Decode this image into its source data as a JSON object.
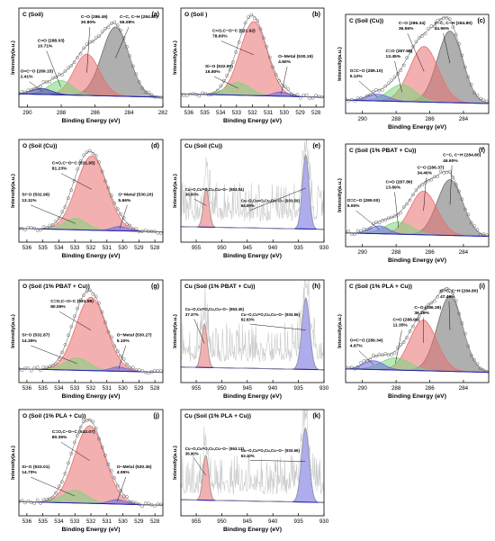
{
  "x_axis_label": "Binding Energy (eV)",
  "y_axis_label": "Intensity(a.u.)",
  "colors": {
    "black_peak": "#6e6e6e",
    "red_peak": "#e87070",
    "green_peak": "#7ed67e",
    "blue_peak": "#6a6ae0",
    "dark_peak": "#3838a8",
    "fit_line": "#9a9a9a",
    "background_line": "#1f1fb0"
  },
  "chart_data": [
    {
      "id": "a",
      "type": "line",
      "element": "C",
      "title": "C (Soil)",
      "panel_label": "(a)",
      "xlim": [
        290.5,
        282
      ],
      "x_ticks": [
        290,
        288,
        286,
        284,
        282
      ],
      "ylim": [
        0,
        1
      ],
      "peaks": [
        {
          "center": 284.8,
          "height": 0.82,
          "width": 0.8,
          "color": "black_peak",
          "label_lines": [
            "C−C, C−H (284.80)",
            "56.08%"
          ]
        },
        {
          "center": 286.49,
          "height": 0.49,
          "width": 0.75,
          "color": "red_peak",
          "label_lines": [
            "C−O (286.49)",
            "30.80%"
          ]
        },
        {
          "center": 288.03,
          "height": 0.17,
          "width": 0.7,
          "color": "green_peak",
          "label_lines": [
            "C=O (288.03)",
            "10.71%"
          ]
        },
        {
          "center": 289.15,
          "height": 0.07,
          "width": 0.6,
          "color": "dark_peak",
          "label_lines": [
            "O=C−O (289.15)",
            "2.41%"
          ]
        }
      ]
    },
    {
      "id": "b",
      "type": "line",
      "element": "O",
      "title": "O (Soil )",
      "panel_label": "(b)",
      "xlim": [
        536.5,
        527.5
      ],
      "x_ticks": [
        536,
        535,
        534,
        533,
        532,
        531,
        530,
        529,
        528
      ],
      "ylim": [
        0,
        1
      ],
      "peaks": [
        {
          "center": 531.92,
          "height": 0.88,
          "width": 0.85,
          "color": "red_peak",
          "label_lines": [
            "C=O,C−O−C (531.92)",
            "78.60%"
          ]
        },
        {
          "center": 532.9,
          "height": 0.15,
          "width": 0.75,
          "color": "green_peak",
          "label_lines": [
            "Si−O (532.90)",
            "16.80%"
          ]
        },
        {
          "center": 530.19,
          "height": 0.05,
          "width": 0.5,
          "color": "blue_peak",
          "label_lines": [
            "O−Metal (530.19)",
            "4.60%"
          ]
        }
      ]
    },
    {
      "id": "c",
      "type": "line",
      "element": "C",
      "title": "C (Soil (Cu))",
      "panel_label": "(c)",
      "xlim": [
        291,
        282.5
      ],
      "x_ticks": [
        290,
        288,
        286,
        284
      ],
      "ylim": [
        0,
        1
      ],
      "peaks": [
        {
          "center": 284.8,
          "height": 0.85,
          "width": 0.75,
          "color": "black_peak",
          "label_lines": [
            "C−C, C−H (284.80)",
            "44.96%"
          ]
        },
        {
          "center": 286.34,
          "height": 0.66,
          "width": 0.85,
          "color": "red_peak",
          "label_lines": [
            "C−O (286.34)",
            "36.56%"
          ]
        },
        {
          "center": 287.65,
          "height": 0.2,
          "width": 0.8,
          "color": "green_peak",
          "label_lines": [
            "C=O (287.65)",
            "13.45%"
          ]
        },
        {
          "center": 289.1,
          "height": 0.08,
          "width": 0.65,
          "color": "blue_peak",
          "label_lines": [
            "O=C−O (289.10)",
            "5.12%"
          ]
        }
      ]
    },
    {
      "id": "d",
      "type": "line",
      "element": "O",
      "title": "O (Soil (Cu))",
      "panel_label": "(d)",
      "xlim": [
        536.5,
        527.5
      ],
      "x_ticks": [
        536,
        535,
        534,
        533,
        532,
        531,
        530,
        529,
        528
      ],
      "ylim": [
        0,
        1
      ],
      "peaks": [
        {
          "center": 531.95,
          "height": 0.85,
          "width": 0.95,
          "color": "red_peak",
          "label_lines": [
            "C=O,C−O−C (531.95)",
            "81.23%"
          ]
        },
        {
          "center": 532.96,
          "height": 0.13,
          "width": 0.7,
          "color": "green_peak",
          "label_lines": [
            "Si−O (532.96)",
            "13.11%"
          ]
        },
        {
          "center": 530.2,
          "height": 0.05,
          "width": 0.5,
          "color": "blue_peak",
          "label_lines": [
            "O−Metal (530.20)",
            "5.66%"
          ]
        }
      ]
    },
    {
      "id": "e",
      "type": "line",
      "element": "Cu",
      "title": "Cu (Soil (Cu))",
      "panel_label": "(e)",
      "xlim": [
        958,
        930
      ],
      "x_ticks": [
        955,
        950,
        945,
        940,
        935,
        930
      ],
      "ylim": [
        0,
        1
      ],
      "noisy": true,
      "peaks": [
        {
          "center": 953.04,
          "height": 0.45,
          "width": 0.55,
          "color": "red_peak",
          "label_lines": [
            "Cu−O,Cu=O,Cu,Cu−O− (953.04)",
            "36.00%"
          ]
        },
        {
          "center": 933.59,
          "height": 0.85,
          "width": 0.65,
          "color": "blue_peak",
          "label_lines": [
            "Cu−O,Cu=O,Cu,Cu−O− (933.59)",
            "64.00%"
          ]
        }
      ]
    },
    {
      "id": "f",
      "type": "line",
      "element": "C",
      "title": "C (Soil (1% PBAT + Cu))",
      "panel_label": "(f)",
      "xlim": [
        291,
        282.5
      ],
      "x_ticks": [
        290,
        288,
        286,
        284
      ],
      "ylim": [
        0,
        1
      ],
      "peaks": [
        {
          "center": 284.8,
          "height": 0.64,
          "width": 0.75,
          "color": "black_peak",
          "label_lines": [
            "C−C, C−H (284.80)",
            "46.60%"
          ]
        },
        {
          "center": 286.37,
          "height": 0.5,
          "width": 0.8,
          "color": "red_peak",
          "label_lines": [
            "C−O (286.37)",
            "34.46%"
          ]
        },
        {
          "center": 287.86,
          "height": 0.14,
          "width": 0.8,
          "color": "green_peak",
          "label_lines": [
            "C=O (287.86)",
            "13.89%"
          ]
        },
        {
          "center": 289.0,
          "height": 0.09,
          "width": 0.55,
          "color": "blue_peak",
          "label_lines": [
            "O=C−O (289.00)",
            "5.05%"
          ]
        }
      ]
    },
    {
      "id": "g",
      "type": "line",
      "element": "O",
      "title": "O (Soil (1% PBAT + Cu))",
      "panel_label": "(g)",
      "xlim": [
        536.5,
        527.5
      ],
      "x_ticks": [
        536,
        535,
        534,
        533,
        532,
        531,
        530,
        529,
        528
      ],
      "ylim": [
        0,
        1
      ],
      "peaks": [
        {
          "center": 531.99,
          "height": 0.84,
          "width": 0.95,
          "color": "red_peak",
          "label_lines": [
            "C=O,C−O−C (531.99)",
            "80.55%"
          ]
        },
        {
          "center": 532.87,
          "height": 0.14,
          "width": 0.75,
          "color": "green_peak",
          "label_lines": [
            "Si−O (532.87)",
            "14.35%"
          ]
        },
        {
          "center": 530.27,
          "height": 0.05,
          "width": 0.5,
          "color": "blue_peak",
          "label_lines": [
            "O−Metal (530.27)",
            "5.10%"
          ]
        }
      ]
    },
    {
      "id": "h",
      "type": "line",
      "element": "Cu",
      "title": "Cu (Soil (1% PBAT + Cu))",
      "panel_label": "(h)",
      "xlim": [
        958,
        930
      ],
      "x_ticks": [
        955,
        950,
        945,
        940,
        935,
        930
      ],
      "ylim": [
        0,
        1
      ],
      "noisy": true,
      "peaks": [
        {
          "center": 953.4,
          "height": 0.5,
          "width": 0.55,
          "color": "red_peak",
          "label_lines": [
            "Cu−O,Cu=O,Cu,Cu−O− (953.40)",
            "37.37%"
          ]
        },
        {
          "center": 933.56,
          "height": 0.82,
          "width": 0.75,
          "color": "blue_peak",
          "label_lines": [
            "Cu−O,Cu=O,Cu,Cu−O− (933.56)",
            "62.63%"
          ]
        }
      ]
    },
    {
      "id": "i",
      "type": "line",
      "element": "C",
      "title": "C (Soil (1% PLA + Cu))",
      "panel_label": "(i)",
      "xlim": [
        291,
        282.5
      ],
      "x_ticks": [
        290,
        288,
        286,
        284
      ],
      "ylim": [
        0,
        1
      ],
      "peaks": [
        {
          "center": 284.8,
          "height": 0.86,
          "width": 0.75,
          "color": "black_peak",
          "label_lines": [
            "C−C, C−H (284.80)",
            "47.49%"
          ]
        },
        {
          "center": 286.39,
          "height": 0.58,
          "width": 0.8,
          "color": "red_peak",
          "label_lines": [
            "C−O (286.39)",
            "36.29%"
          ]
        },
        {
          "center": 288.04,
          "height": 0.14,
          "width": 0.85,
          "color": "green_peak",
          "label_lines": [
            "C=O (288.04)",
            "11.35%"
          ]
        },
        {
          "center": 289.34,
          "height": 0.1,
          "width": 0.6,
          "color": "blue_peak",
          "label_lines": [
            "O=C−O (289.34)",
            "4.87%"
          ]
        }
      ]
    },
    {
      "id": "j",
      "type": "line",
      "element": "O",
      "title": "O (Soil (1% PLA + Cu))",
      "panel_label": "(j)",
      "xlim": [
        536.5,
        527.5
      ],
      "x_ticks": [
        536,
        535,
        534,
        533,
        532,
        531,
        530,
        529,
        528
      ],
      "ylim": [
        0,
        1
      ],
      "peaks": [
        {
          "center": 532.07,
          "height": 0.86,
          "width": 0.95,
          "color": "red_peak",
          "label_lines": [
            "C=O,C−O−C (532.07)",
            "80.35%"
          ]
        },
        {
          "center": 533.01,
          "height": 0.14,
          "width": 0.75,
          "color": "green_peak",
          "label_lines": [
            "Si−O (533.01)",
            "14.70%"
          ]
        },
        {
          "center": 530.36,
          "height": 0.05,
          "width": 0.5,
          "color": "blue_peak",
          "label_lines": [
            "O−Metal (530.36)",
            "4.95%"
          ]
        }
      ]
    },
    {
      "id": "k",
      "type": "line",
      "element": "Cu",
      "title": "Cu (Soil (1% PLA + Cu))",
      "panel_label": "(k)",
      "xlim": [
        958,
        930
      ],
      "x_ticks": [
        955,
        950,
        945,
        940,
        935,
        930
      ],
      "ylim": [
        0,
        1
      ],
      "noisy": true,
      "peaks": [
        {
          "center": 953.13,
          "height": 0.5,
          "width": 0.55,
          "color": "red_peak",
          "label_lines": [
            "Cu−O,Cu=O,Cu,Cu−O− (953.13)",
            "36.90%"
          ]
        },
        {
          "center": 933.66,
          "height": 0.82,
          "width": 0.75,
          "color": "blue_peak",
          "label_lines": [
            "Cu−O,Cu=O,Cu,Cu−O− (933.66)",
            "63.10%"
          ]
        }
      ]
    }
  ]
}
